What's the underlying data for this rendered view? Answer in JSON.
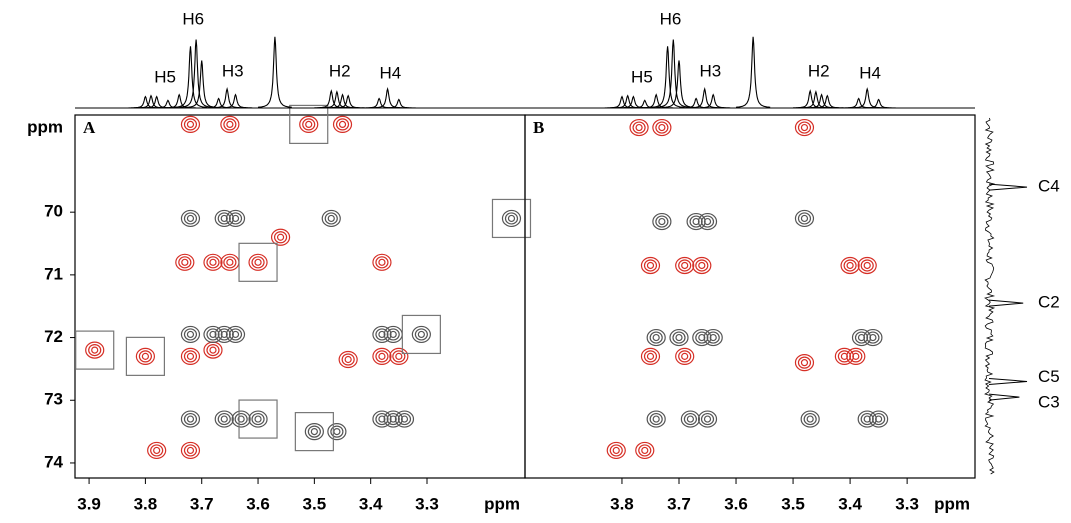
{
  "chart_data": [
    {
      "type": "contour",
      "label": "A",
      "xlim": [
        3.925,
        3.126
      ],
      "ylim": [
        68.45,
        74.24
      ],
      "xticks": [
        3.9,
        3.8,
        3.7,
        3.6,
        3.5,
        3.4,
        3.3
      ],
      "yticks": [
        70,
        71,
        72,
        73,
        74
      ],
      "x_unit": "ppm",
      "y_unit": "ppm",
      "peaks": [
        {
          "color": "#d62f26",
          "x": [
            3.72,
            3.65,
            3.51,
            3.45,
            3.73,
            3.68,
            3.65,
            3.6,
            3.38,
            3.89,
            3.8,
            3.72,
            3.68,
            3.44,
            3.38,
            3.35,
            3.78,
            3.72,
            3.56
          ],
          "y": [
            68.6,
            68.6,
            68.6,
            68.6,
            70.8,
            70.8,
            70.8,
            70.8,
            70.8,
            72.2,
            72.3,
            72.3,
            72.2,
            72.35,
            72.3,
            72.3,
            73.8,
            73.8,
            70.4
          ]
        },
        {
          "color": "#555555",
          "x": [
            3.72,
            3.66,
            3.64,
            3.47,
            3.15,
            3.72,
            3.68,
            3.66,
            3.64,
            3.38,
            3.36,
            3.31,
            3.72,
            3.66,
            3.63,
            3.6,
            3.5,
            3.46,
            3.38,
            3.36,
            3.34
          ],
          "y": [
            70.1,
            70.1,
            70.1,
            70.1,
            70.1,
            71.95,
            71.95,
            71.95,
            71.95,
            71.95,
            71.95,
            71.95,
            73.3,
            73.3,
            73.3,
            73.3,
            73.5,
            73.5,
            73.3,
            73.3,
            73.3
          ]
        }
      ],
      "boxes": {
        "x": [
          3.51,
          3.6,
          3.15,
          3.89,
          3.8,
          3.31,
          3.6,
          3.5
        ],
        "y": [
          68.6,
          70.8,
          70.1,
          72.2,
          72.3,
          71.95,
          73.3,
          73.5
        ]
      }
    },
    {
      "type": "contour",
      "label": "B",
      "xlim": [
        3.97,
        3.181
      ],
      "ylim": [
        68.45,
        74.24
      ],
      "xticks": [
        3.8,
        3.7,
        3.6,
        3.5,
        3.4,
        3.3
      ],
      "x_unit": "ppm",
      "peaks": [
        {
          "color": "#d62f26",
          "x": [
            3.77,
            3.73,
            3.48,
            3.75,
            3.69,
            3.66,
            3.4,
            3.37,
            3.75,
            3.69,
            3.48,
            3.41,
            3.39,
            3.81,
            3.76
          ],
          "y": [
            68.65,
            68.65,
            68.65,
            70.85,
            70.85,
            70.85,
            70.85,
            70.85,
            72.3,
            72.3,
            72.4,
            72.3,
            72.3,
            73.8,
            73.8
          ]
        },
        {
          "color": "#555555",
          "x": [
            3.73,
            3.67,
            3.65,
            3.48,
            3.74,
            3.7,
            3.66,
            3.64,
            3.38,
            3.36,
            3.74,
            3.68,
            3.65,
            3.47,
            3.37,
            3.35
          ],
          "y": [
            70.15,
            70.15,
            70.15,
            70.1,
            72.0,
            72.0,
            72.0,
            72.0,
            72.0,
            72.0,
            73.3,
            73.3,
            73.3,
            73.3,
            73.3,
            73.3
          ]
        }
      ]
    }
  ],
  "proton_spectrum": {
    "x": [
      3.8,
      3.79,
      3.78,
      3.76,
      3.74,
      3.72,
      3.71,
      3.7,
      3.67,
      3.655,
      3.64,
      3.57,
      3.47,
      3.46,
      3.45,
      3.44,
      3.385,
      3.37,
      3.35
    ],
    "heights": [
      0.12,
      0.13,
      0.12,
      0.08,
      0.14,
      0.65,
      0.72,
      0.5,
      0.1,
      0.2,
      0.14,
      0.75,
      0.18,
      0.17,
      0.14,
      0.13,
      0.1,
      0.2,
      0.09
    ],
    "labels": [
      "H5",
      "H6",
      "H3",
      "H2",
      "H4"
    ],
    "label_x": [
      3.765,
      3.715,
      3.645,
      3.455,
      3.365
    ]
  },
  "carbon_spectrum": {
    "y": [
      69.6,
      71.45,
      72.7,
      72.95
    ],
    "heights": [
      1,
      0.9,
      1,
      0.8
    ],
    "labels": [
      "C4",
      "C2",
      "C5",
      "C3"
    ]
  }
}
